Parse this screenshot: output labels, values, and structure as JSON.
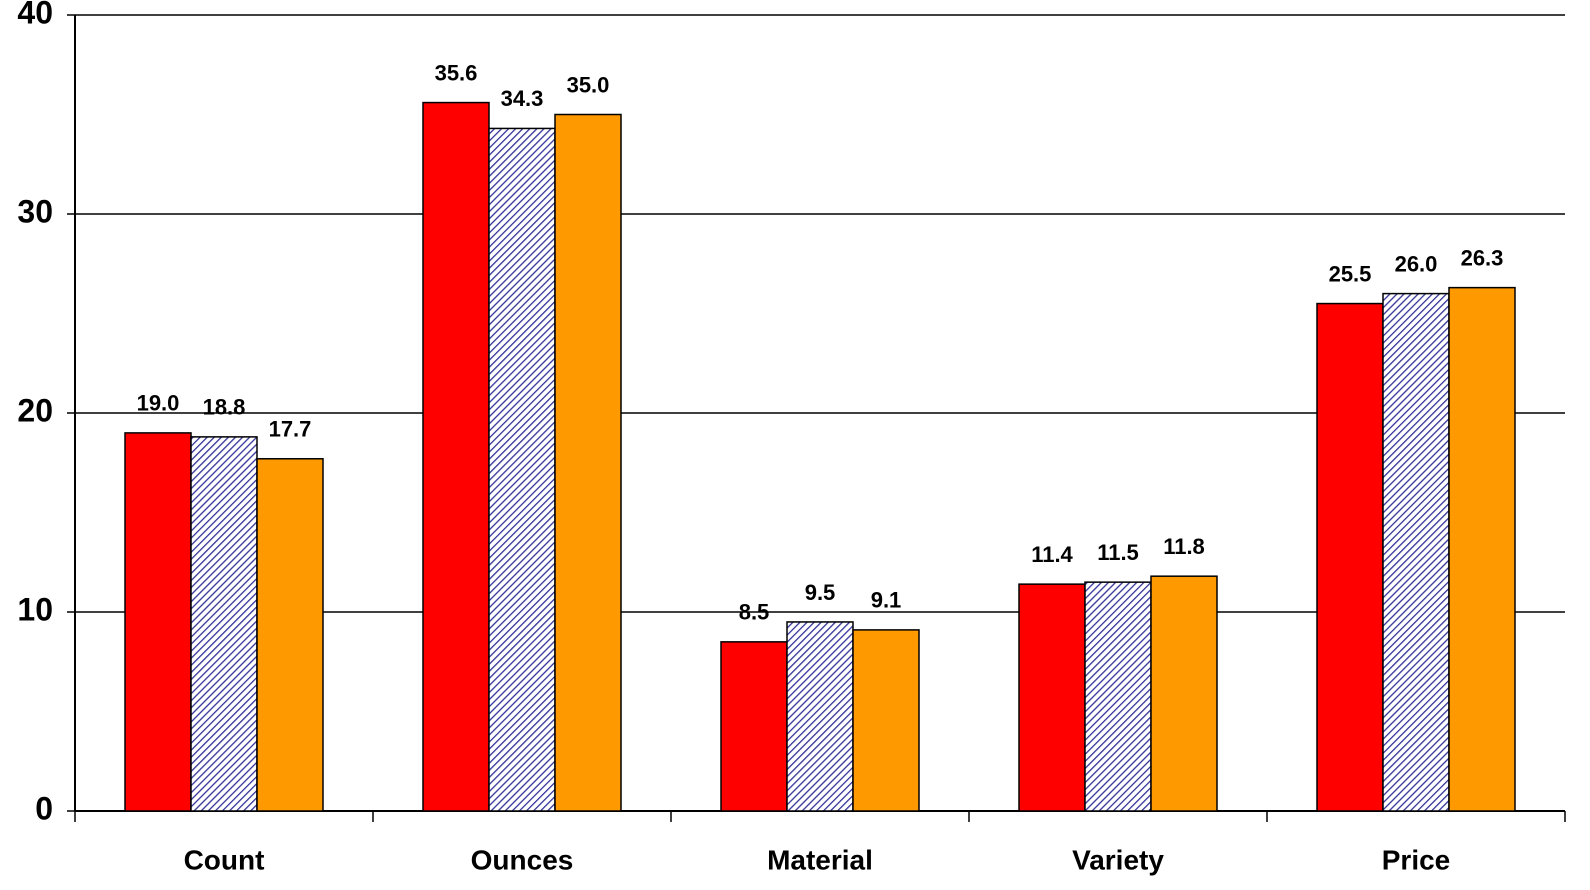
{
  "chart_data": {
    "type": "bar",
    "categories": [
      "Count",
      "Ounces",
      "Material",
      "Variety",
      "Price"
    ],
    "series": [
      {
        "color": "#ff0000",
        "values": [
          19,
          35.6,
          8.5,
          11.4,
          25.5
        ],
        "value_labels": [
          "19.0",
          "35.6",
          "8.5",
          "11.4",
          "25.5"
        ]
      },
      {
        "color": "#333399",
        "pattern": "hatch",
        "values": [
          18.8,
          34.3,
          9.5,
          11.5,
          26
        ],
        "value_labels": [
          "18.8",
          "34.3",
          "9.5",
          "11.5",
          "26.0"
        ]
      },
      {
        "color": "#ff9900",
        "values": [
          17.7,
          35,
          9.1,
          11.8,
          26.3
        ],
        "value_labels": [
          "17.7",
          "35.0",
          "9.1",
          "11.8",
          "26.3"
        ]
      }
    ],
    "ylim": [
      0,
      40
    ],
    "yticks": [
      0,
      10,
      20,
      30,
      40
    ],
    "grid": true
  }
}
